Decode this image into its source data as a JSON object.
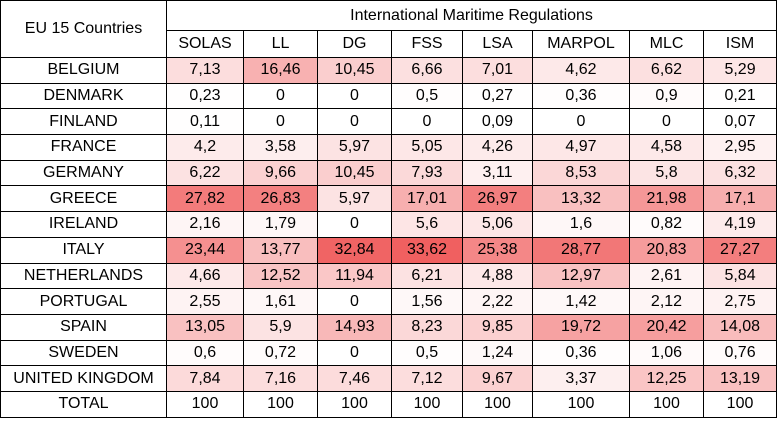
{
  "chart_data": {
    "type": "heatmap",
    "row_header": "EU 15 Countries",
    "column_group": "International Maritime Regulations",
    "columns": [
      "SOLAS",
      "LL",
      "DG",
      "FSS",
      "LSA",
      "MARPOL",
      "MLC",
      "ISM"
    ],
    "rows": [
      {
        "label": "BELGIUM",
        "values": [
          "7,13",
          "16,46",
          "10,45",
          "6,66",
          "7,01",
          "4,62",
          "6,62",
          "5,29"
        ]
      },
      {
        "label": "DENMARK",
        "values": [
          "0,23",
          "0",
          "0",
          "0,5",
          "0,27",
          "0,36",
          "0,9",
          "0,21"
        ]
      },
      {
        "label": "FINLAND",
        "values": [
          "0,11",
          "0",
          "0",
          "0",
          "0,09",
          "0",
          "0",
          "0,07"
        ]
      },
      {
        "label": "FRANCE",
        "values": [
          "4,2",
          "3,58",
          "5,97",
          "5,05",
          "4,26",
          "4,97",
          "4,58",
          "2,95"
        ]
      },
      {
        "label": "GERMANY",
        "values": [
          "6,22",
          "9,66",
          "10,45",
          "7,93",
          "3,11",
          "8,53",
          "5,8",
          "6,32"
        ]
      },
      {
        "label": "GREECE",
        "values": [
          "27,82",
          "26,83",
          "5,97",
          "17,01",
          "26,97",
          "13,32",
          "21,98",
          "17,1"
        ]
      },
      {
        "label": "IRELAND",
        "values": [
          "2,16",
          "1,79",
          "0",
          "5,6",
          "5,06",
          "1,6",
          "0,82",
          "4,19"
        ]
      },
      {
        "label": "ITALY",
        "values": [
          "23,44",
          "13,77",
          "32,84",
          "33,62",
          "25,38",
          "28,77",
          "20,83",
          "27,27"
        ]
      },
      {
        "label": "NETHERLANDS",
        "values": [
          "4,66",
          "12,52",
          "11,94",
          "6,21",
          "4,88",
          "12,97",
          "2,61",
          "5,84"
        ]
      },
      {
        "label": "PORTUGAL",
        "values": [
          "2,55",
          "1,61",
          "0",
          "1,56",
          "2,22",
          "1,42",
          "2,12",
          "2,75"
        ]
      },
      {
        "label": "SPAIN",
        "values": [
          "13,05",
          "5,9",
          "14,93",
          "8,23",
          "9,85",
          "19,72",
          "20,42",
          "14,08"
        ]
      },
      {
        "label": "SWEDEN",
        "values": [
          "0,6",
          "0,72",
          "0",
          "0,5",
          "1,24",
          "0,36",
          "1,06",
          "0,76"
        ]
      },
      {
        "label": "UNITED KINGDOM",
        "values": [
          "7,84",
          "7,16",
          "7,46",
          "7,12",
          "9,67",
          "3,37",
          "12,25",
          "13,19"
        ]
      }
    ],
    "total_row": {
      "label": "TOTAL",
      "values": [
        "100",
        "100",
        "100",
        "100",
        "100",
        "100",
        "100",
        "100"
      ]
    },
    "color_scale": {
      "low": "#ffffff",
      "high": "#f06060"
    }
  }
}
